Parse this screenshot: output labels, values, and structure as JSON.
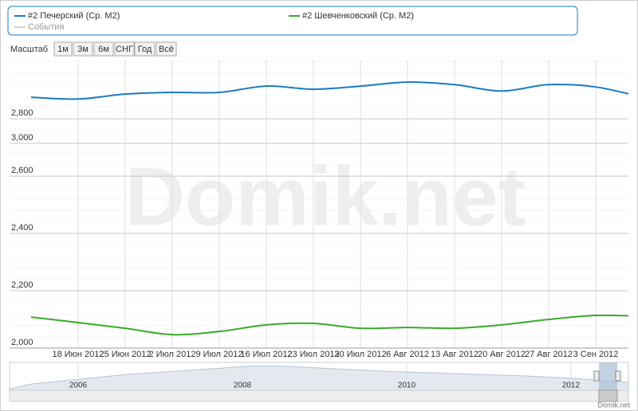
{
  "chart_data": {
    "type": "line",
    "categories": [
      null,
      "18 Июн 2012",
      "25 Июн 2012",
      "2 Июл 2012",
      "9 Июл 2012",
      "16 Июл 2012",
      "23 Июл 2012",
      "30 Июл 2012",
      "6 Авг 2012",
      "13 Авг 2012",
      "20 Авг 2012",
      "27 Авг 2012",
      "3 Сен 2012",
      null
    ],
    "series": [
      {
        "name": "#2 Печерский (Ср. М2)",
        "color": "#1a7cc1",
        "values": [
          2875,
          2869,
          2886,
          2892,
          2892,
          2914,
          2903,
          2914,
          2928,
          2919,
          2897,
          2919,
          2911,
          2875
        ]
      },
      {
        "name": "#2 Шевченковский (Ср. М2)",
        "color": "#3aa82a",
        "values": [
          2108,
          2089,
          2069,
          2047,
          2058,
          2081,
          2086,
          2069,
          2072,
          2069,
          2081,
          2100,
          2114,
          2111
        ]
      }
    ],
    "events_label": "События",
    "ylim": [
      2000,
      3006
    ],
    "yticks": [
      {
        "value": 2000,
        "label": "2,000"
      },
      {
        "value": 2200,
        "label": "2,200"
      },
      {
        "value": 2400,
        "label": "2,400"
      },
      {
        "value": 2600,
        "label": "2,600"
      },
      {
        "value": 2800,
        "label": "2,800"
      }
    ],
    "y2lim": [
      2000,
      3409
    ],
    "y2ticks": [
      {
        "value": 3000,
        "label": "3,000"
      }
    ],
    "grid": true,
    "range_selector": {
      "label": "Масштаб",
      "buttons": [
        "1м",
        "3м",
        "6м",
        "СНГ",
        "Год",
        "Всё"
      ]
    },
    "navigator": {
      "xlim": [
        2005.165,
        2012.7
      ],
      "xticks": [
        2006,
        2008,
        2010,
        2012
      ]
    },
    "watermark": "Domik.net",
    "credit": "Domik.net"
  }
}
